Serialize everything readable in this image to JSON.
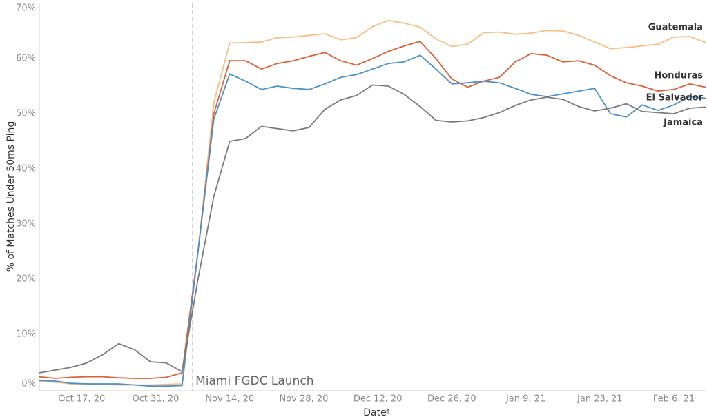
{
  "chart_data": {
    "type": "line",
    "y_label": "% of Matches Under 50ms Ping",
    "x_label": "Date",
    "xlim": [
      "2020-10-09",
      "2021-02-12"
    ],
    "xticks": [
      {
        "value": "2020-10-17",
        "label": "Oct 17, 20"
      },
      {
        "value": "2020-10-31",
        "label": "Oct 31, 20"
      },
      {
        "value": "2020-11-14",
        "label": "Nov 14, 20"
      },
      {
        "value": "2020-11-28",
        "label": "Nov 28, 20"
      },
      {
        "value": "2020-12-12",
        "label": "Dec 12, 20"
      },
      {
        "value": "2020-12-26",
        "label": "Dec 26, 20"
      },
      {
        "value": "2021-01-09",
        "label": "Jan 9, 21"
      },
      {
        "value": "2021-01-23",
        "label": "Jan 23, 21"
      },
      {
        "value": "2021-02-06",
        "label": "Feb 6, 21"
      }
    ],
    "ylim": [
      0,
      70
    ],
    "yticks": [
      {
        "value": 0,
        "label": "0%"
      },
      {
        "value": 10,
        "label": "10%"
      },
      {
        "value": 20,
        "label": "20%"
      },
      {
        "value": 30,
        "label": "30%"
      },
      {
        "value": 40,
        "label": "40%"
      },
      {
        "value": 50,
        "label": "50%"
      },
      {
        "value": 60,
        "label": "60%"
      },
      {
        "value": 70,
        "label": "70%"
      }
    ],
    "grid": false,
    "annotation": {
      "text": "Miami FGDC Launch",
      "x": "2020-11-07"
    },
    "x": [
      "2020-10-09",
      "2020-10-12",
      "2020-10-15",
      "2020-10-18",
      "2020-10-21",
      "2020-10-24",
      "2020-10-27",
      "2020-10-30",
      "2020-11-02",
      "2020-11-05",
      "2020-11-08",
      "2020-11-11",
      "2020-11-14",
      "2020-11-17",
      "2020-11-20",
      "2020-11-23",
      "2020-11-26",
      "2020-11-29",
      "2020-12-02",
      "2020-12-05",
      "2020-12-08",
      "2020-12-11",
      "2020-12-14",
      "2020-12-17",
      "2020-12-20",
      "2020-12-23",
      "2020-12-26",
      "2020-12-29",
      "2021-01-01",
      "2021-01-04",
      "2021-01-07",
      "2021-01-10",
      "2021-01-13",
      "2021-01-16",
      "2021-01-19",
      "2021-01-22",
      "2021-01-25",
      "2021-01-28",
      "2021-01-31",
      "2021-02-03",
      "2021-02-06",
      "2021-02-09",
      "2021-02-12"
    ],
    "series": [
      {
        "name": "Guatemala",
        "color": "#f8bd84",
        "values": [
          1.5,
          1.3,
          1.0,
          1.0,
          0.9,
          0.8,
          0.8,
          0.8,
          0.9,
          1.0,
          25,
          52,
          62.8,
          62.9,
          63.0,
          63.8,
          63.9,
          64.2,
          64.5,
          63.4,
          63.8,
          65.8,
          66.9,
          66.4,
          65.7,
          63.6,
          62.2,
          62.6,
          64.7,
          64.8,
          64.4,
          64.6,
          65.1,
          65.0,
          64.2,
          63.0,
          61.8,
          62.0,
          62.3,
          62.6,
          63.9,
          64.0,
          62.9
        ]
      },
      {
        "name": "Honduras",
        "color": "#d9623b",
        "values": [
          2.3,
          2.0,
          2.2,
          2.3,
          2.3,
          2.1,
          2.0,
          2.0,
          2.2,
          3.0,
          25,
          50,
          59.6,
          59.6,
          58.1,
          59.1,
          59.6,
          60.4,
          61.1,
          59.6,
          58.8,
          60.0,
          61.3,
          62.3,
          63.1,
          60.0,
          56.3,
          54.8,
          55.9,
          56.6,
          59.4,
          60.9,
          60.6,
          59.4,
          59.6,
          58.8,
          56.9,
          55.6,
          55.0,
          54.1,
          54.4,
          55.4,
          54.8
        ]
      },
      {
        "name": "El Salvador",
        "color": "#4e8fc4",
        "values": [
          1.6,
          1.5,
          1.1,
          1.0,
          1.0,
          1.0,
          0.8,
          0.6,
          0.6,
          0.7,
          25,
          49,
          57.2,
          55.9,
          54.4,
          55.0,
          54.6,
          54.4,
          55.4,
          56.6,
          57.1,
          58.1,
          59.1,
          59.4,
          60.6,
          58.1,
          55.4,
          55.6,
          55.9,
          55.6,
          54.6,
          53.5,
          53.1,
          53.6,
          54.1,
          54.6,
          50.0,
          49.4,
          51.6,
          50.6,
          51.6,
          53.1,
          52.8
        ]
      },
      {
        "name": "Jamaica",
        "color": "#7a7a7a",
        "values": [
          3.0,
          3.5,
          4.0,
          4.8,
          6.3,
          8.3,
          7.2,
          5.0,
          4.8,
          3.2,
          20,
          35,
          45,
          45.5,
          47.7,
          47.3,
          46.9,
          47.5,
          50.8,
          52.5,
          53.3,
          55.2,
          55.0,
          53.5,
          51.3,
          48.8,
          48.5,
          48.7,
          49.3,
          50.2,
          51.5,
          52.5,
          53.0,
          52.6,
          51.3,
          50.5,
          51.0,
          51.8,
          50.4,
          50.2,
          50.0,
          51.0,
          51.2
        ]
      }
    ]
  }
}
